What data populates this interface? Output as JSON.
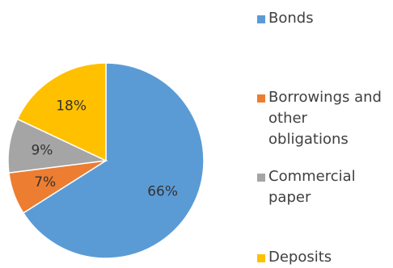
{
  "chart_data": {
    "type": "pie",
    "title": "",
    "slices": [
      {
        "label": "Bonds",
        "value": 66,
        "display": "66%",
        "color": "#5B9BD5"
      },
      {
        "label": "Borrowings and other obligations",
        "value": 7,
        "display": "7%",
        "color": "#ED7D31"
      },
      {
        "label": "Commercial paper",
        "value": 9,
        "display": "9%",
        "color": "#A5A5A5"
      },
      {
        "label": "Deposits",
        "value": 18,
        "display": "18%",
        "color": "#FFC000"
      }
    ],
    "start_angle_deg": 0,
    "direction": "clockwise",
    "legend_position": "right"
  }
}
